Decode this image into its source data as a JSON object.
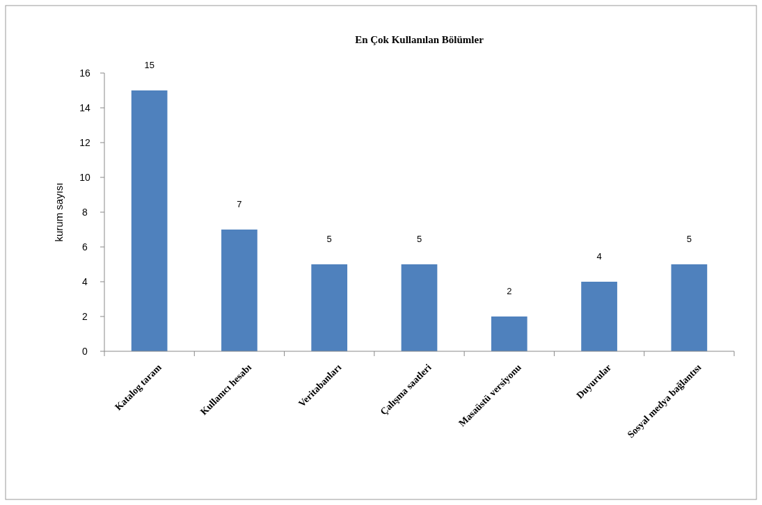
{
  "chart_data": {
    "type": "bar",
    "title": "En Çok Kullanılan Bölümler",
    "ylabel": "kurum sayısı",
    "categories": [
      "Katalog taram",
      "Kullanıcı hesabı",
      "Veritabanları",
      "Çalışma saatleri",
      "Masaüstü versiyonu",
      "Duyurular",
      "Sosyal medya bağlantısı"
    ],
    "values": [
      15,
      7,
      5,
      5,
      2,
      4,
      5
    ],
    "color": "#4f81bd",
    "ylim": [
      0,
      16
    ],
    "yticks": [
      0,
      2,
      4,
      6,
      8,
      10,
      12,
      14,
      16
    ],
    "data_labels": true
  }
}
